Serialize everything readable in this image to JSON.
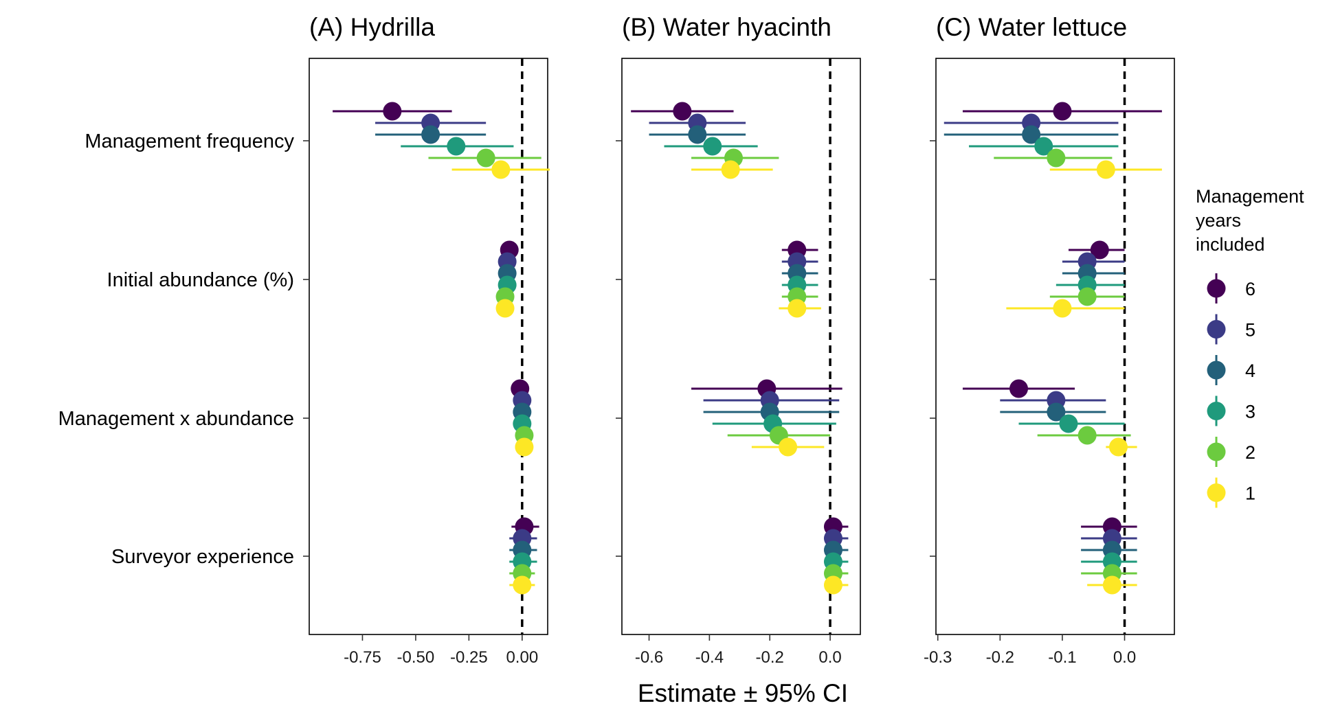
{
  "xlabel": "Estimate ± 95% CI",
  "covariates": [
    "Management frequency",
    "Initial abundance (%)",
    "Management x abundance",
    "Surveyor experience"
  ],
  "legend": {
    "title_lines": [
      "Management",
      "years",
      "included"
    ],
    "entries": [
      {
        "label": "6",
        "color": "#440154"
      },
      {
        "label": "5",
        "color": "#3B3B86"
      },
      {
        "label": "4",
        "color": "#23607A"
      },
      {
        "label": "3",
        "color": "#1F9A7C"
      },
      {
        "label": "2",
        "color": "#6CCB3F"
      },
      {
        "label": "1",
        "color": "#FDE725"
      }
    ]
  },
  "chart_data": [
    {
      "type": "forest",
      "title": "(A) Hydrilla",
      "xlim": [
        -1.0,
        0.12
      ],
      "ticks": [
        -0.75,
        -0.5,
        -0.25,
        0.0
      ],
      "tick_labels": [
        "-0.75",
        "-0.50",
        "-0.25",
        "0.00"
      ],
      "reference_line": 0,
      "series": [
        {
          "name": "6",
          "points": [
            {
              "est": -0.61,
              "lo": -0.89,
              "hi": -0.33
            },
            {
              "est": -0.06,
              "lo": -0.06,
              "hi": -0.06
            },
            {
              "est": -0.01,
              "lo": -0.01,
              "hi": -0.01
            },
            {
              "est": 0.01,
              "lo": -0.05,
              "hi": 0.08
            }
          ]
        },
        {
          "name": "5",
          "points": [
            {
              "est": -0.43,
              "lo": -0.69,
              "hi": -0.17
            },
            {
              "est": -0.07,
              "lo": -0.07,
              "hi": -0.07
            },
            {
              "est": 0.0,
              "lo": 0.0,
              "hi": 0.0
            },
            {
              "est": 0.0,
              "lo": -0.06,
              "hi": 0.07
            }
          ]
        },
        {
          "name": "4",
          "points": [
            {
              "est": -0.43,
              "lo": -0.69,
              "hi": -0.17
            },
            {
              "est": -0.07,
              "lo": -0.07,
              "hi": -0.07
            },
            {
              "est": 0.0,
              "lo": 0.0,
              "hi": 0.0
            },
            {
              "est": 0.0,
              "lo": -0.06,
              "hi": 0.07
            }
          ]
        },
        {
          "name": "3",
          "points": [
            {
              "est": -0.31,
              "lo": -0.57,
              "hi": -0.04
            },
            {
              "est": -0.07,
              "lo": -0.07,
              "hi": -0.07
            },
            {
              "est": 0.0,
              "lo": 0.0,
              "hi": 0.0
            },
            {
              "est": 0.0,
              "lo": -0.06,
              "hi": 0.07
            }
          ]
        },
        {
          "name": "2",
          "points": [
            {
              "est": -0.17,
              "lo": -0.44,
              "hi": 0.09
            },
            {
              "est": -0.08,
              "lo": -0.08,
              "hi": -0.08
            },
            {
              "est": 0.01,
              "lo": 0.01,
              "hi": 0.01
            },
            {
              "est": 0.0,
              "lo": -0.06,
              "hi": 0.06
            }
          ]
        },
        {
          "name": "1",
          "points": [
            {
              "est": -0.1,
              "lo": -0.33,
              "hi": 0.13
            },
            {
              "est": -0.08,
              "lo": -0.08,
              "hi": -0.08
            },
            {
              "est": 0.01,
              "lo": 0.01,
              "hi": 0.01
            },
            {
              "est": 0.0,
              "lo": -0.06,
              "hi": 0.06
            }
          ]
        }
      ]
    },
    {
      "type": "forest",
      "title": "(B) Water hyacinth",
      "xlim": [
        -0.69,
        0.1
      ],
      "ticks": [
        -0.6,
        -0.4,
        -0.2,
        0.0
      ],
      "tick_labels": [
        "-0.6",
        "-0.4",
        "-0.2",
        "0.0"
      ],
      "reference_line": 0,
      "series": [
        {
          "name": "6",
          "points": [
            {
              "est": -0.49,
              "lo": -0.66,
              "hi": -0.32
            },
            {
              "est": -0.11,
              "lo": -0.16,
              "hi": -0.04
            },
            {
              "est": -0.21,
              "lo": -0.46,
              "hi": 0.04
            },
            {
              "est": 0.01,
              "lo": -0.02,
              "hi": 0.06
            }
          ]
        },
        {
          "name": "5",
          "points": [
            {
              "est": -0.44,
              "lo": -0.6,
              "hi": -0.28
            },
            {
              "est": -0.11,
              "lo": -0.16,
              "hi": -0.04
            },
            {
              "est": -0.2,
              "lo": -0.42,
              "hi": 0.03
            },
            {
              "est": 0.01,
              "lo": -0.02,
              "hi": 0.06
            }
          ]
        },
        {
          "name": "4",
          "points": [
            {
              "est": -0.44,
              "lo": -0.6,
              "hi": -0.28
            },
            {
              "est": -0.11,
              "lo": -0.16,
              "hi": -0.04
            },
            {
              "est": -0.2,
              "lo": -0.42,
              "hi": 0.03
            },
            {
              "est": 0.01,
              "lo": -0.02,
              "hi": 0.06
            }
          ]
        },
        {
          "name": "3",
          "points": [
            {
              "est": -0.39,
              "lo": -0.55,
              "hi": -0.24
            },
            {
              "est": -0.11,
              "lo": -0.16,
              "hi": -0.04
            },
            {
              "est": -0.19,
              "lo": -0.39,
              "hi": 0.02
            },
            {
              "est": 0.01,
              "lo": -0.02,
              "hi": 0.06
            }
          ]
        },
        {
          "name": "2",
          "points": [
            {
              "est": -0.32,
              "lo": -0.46,
              "hi": -0.17
            },
            {
              "est": -0.11,
              "lo": -0.16,
              "hi": -0.04
            },
            {
              "est": -0.17,
              "lo": -0.34,
              "hi": 0.0
            },
            {
              "est": 0.01,
              "lo": -0.02,
              "hi": 0.06
            }
          ]
        },
        {
          "name": "1",
          "points": [
            {
              "est": -0.33,
              "lo": -0.46,
              "hi": -0.19
            },
            {
              "est": -0.11,
              "lo": -0.17,
              "hi": -0.03
            },
            {
              "est": -0.14,
              "lo": -0.26,
              "hi": -0.02
            },
            {
              "est": 0.01,
              "lo": -0.02,
              "hi": 0.06
            }
          ]
        }
      ]
    },
    {
      "type": "forest",
      "title": "(C) Water lettuce",
      "xlim": [
        -0.303,
        0.08
      ],
      "ticks": [
        -0.3,
        -0.2,
        -0.1,
        0.0
      ],
      "tick_labels": [
        "-0.3",
        "-0.2",
        "-0.1",
        "0.0"
      ],
      "reference_line": 0,
      "series": [
        {
          "name": "6",
          "points": [
            {
              "est": -0.1,
              "lo": -0.26,
              "hi": 0.06
            },
            {
              "est": -0.04,
              "lo": -0.09,
              "hi": 0.0
            },
            {
              "est": -0.17,
              "lo": -0.26,
              "hi": -0.08
            },
            {
              "est": -0.02,
              "lo": -0.07,
              "hi": 0.02
            }
          ]
        },
        {
          "name": "5",
          "points": [
            {
              "est": -0.15,
              "lo": -0.29,
              "hi": -0.01
            },
            {
              "est": -0.06,
              "lo": -0.1,
              "hi": 0.0
            },
            {
              "est": -0.11,
              "lo": -0.2,
              "hi": -0.03
            },
            {
              "est": -0.02,
              "lo": -0.07,
              "hi": 0.02
            }
          ]
        },
        {
          "name": "4",
          "points": [
            {
              "est": -0.15,
              "lo": -0.29,
              "hi": -0.01
            },
            {
              "est": -0.06,
              "lo": -0.1,
              "hi": 0.0
            },
            {
              "est": -0.11,
              "lo": -0.2,
              "hi": -0.03
            },
            {
              "est": -0.02,
              "lo": -0.07,
              "hi": 0.02
            }
          ]
        },
        {
          "name": "3",
          "points": [
            {
              "est": -0.13,
              "lo": -0.25,
              "hi": -0.01
            },
            {
              "est": -0.06,
              "lo": -0.11,
              "hi": 0.0
            },
            {
              "est": -0.09,
              "lo": -0.17,
              "hi": 0.0
            },
            {
              "est": -0.02,
              "lo": -0.07,
              "hi": 0.02
            }
          ]
        },
        {
          "name": "2",
          "points": [
            {
              "est": -0.11,
              "lo": -0.21,
              "hi": -0.02
            },
            {
              "est": -0.06,
              "lo": -0.12,
              "hi": 0.0
            },
            {
              "est": -0.06,
              "lo": -0.14,
              "hi": 0.01
            },
            {
              "est": -0.02,
              "lo": -0.07,
              "hi": 0.02
            }
          ]
        },
        {
          "name": "1",
          "points": [
            {
              "est": -0.03,
              "lo": -0.12,
              "hi": 0.06
            },
            {
              "est": -0.1,
              "lo": -0.19,
              "hi": 0.0
            },
            {
              "est": -0.01,
              "lo": -0.03,
              "hi": 0.02
            },
            {
              "est": -0.02,
              "lo": -0.06,
              "hi": 0.02
            }
          ]
        }
      ]
    }
  ]
}
